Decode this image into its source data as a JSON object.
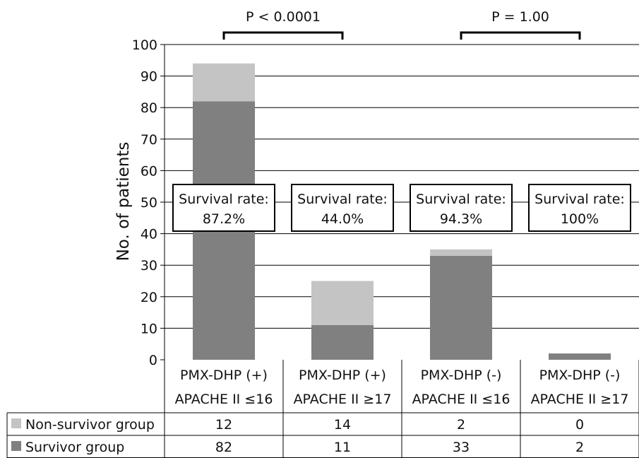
{
  "chart_data": {
    "type": "bar",
    "stacked": true,
    "ylabel": "No. of patients",
    "ylim": [
      0,
      100
    ],
    "yticks": [
      0,
      10,
      20,
      30,
      40,
      50,
      60,
      70,
      80,
      90,
      100
    ],
    "grid": true,
    "categories": [
      [
        "PMX-DHP (+)",
        "APACHE II ≤16"
      ],
      [
        "PMX-DHP (+)",
        "APACHE II ≥17"
      ],
      [
        "PMX-DHP (-)",
        "APACHE II ≤16"
      ],
      [
        "PMX-DHP (-)",
        "APACHE II ≥17"
      ]
    ],
    "series": [
      {
        "name": "Survivor group",
        "values": [
          82,
          11,
          33,
          2
        ],
        "color": "#808080"
      },
      {
        "name": "Non-survivor group",
        "values": [
          12,
          14,
          2,
          0
        ],
        "color": "#c4c4c4"
      }
    ],
    "survival_boxes": [
      [
        "Survival rate:",
        "87.2%"
      ],
      [
        "Survival rate:",
        "44.0%"
      ],
      [
        "Survival rate:",
        "94.3%"
      ],
      [
        "Survival rate:",
        "100%"
      ]
    ],
    "comparisons": [
      {
        "label": "P < 0.0001",
        "from": 0,
        "to": 1
      },
      {
        "label": "P = 1.00",
        "from": 2,
        "to": 3
      }
    ],
    "table_rows": [
      "Non-survivor group",
      "Survivor group"
    ]
  }
}
